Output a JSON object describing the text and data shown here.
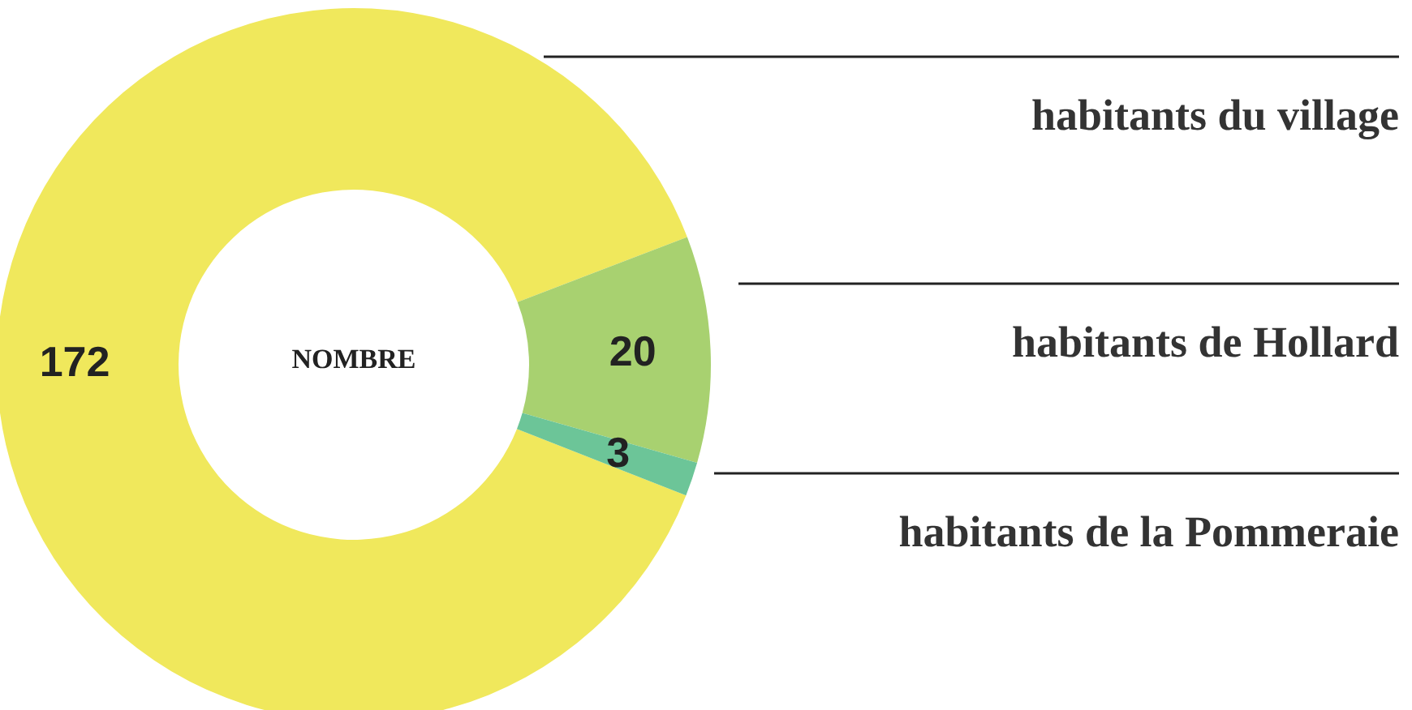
{
  "chart_data": {
    "type": "donut",
    "title": "NOMBRE",
    "categories": [
      "habitants du village",
      "habitants de Hollard",
      "habitants de la Pommeraie"
    ],
    "values": [
      172,
      20,
      3
    ],
    "colors": [
      "#f0e85c",
      "#a8d170",
      "#6cc598"
    ],
    "data_labels": true
  }
}
